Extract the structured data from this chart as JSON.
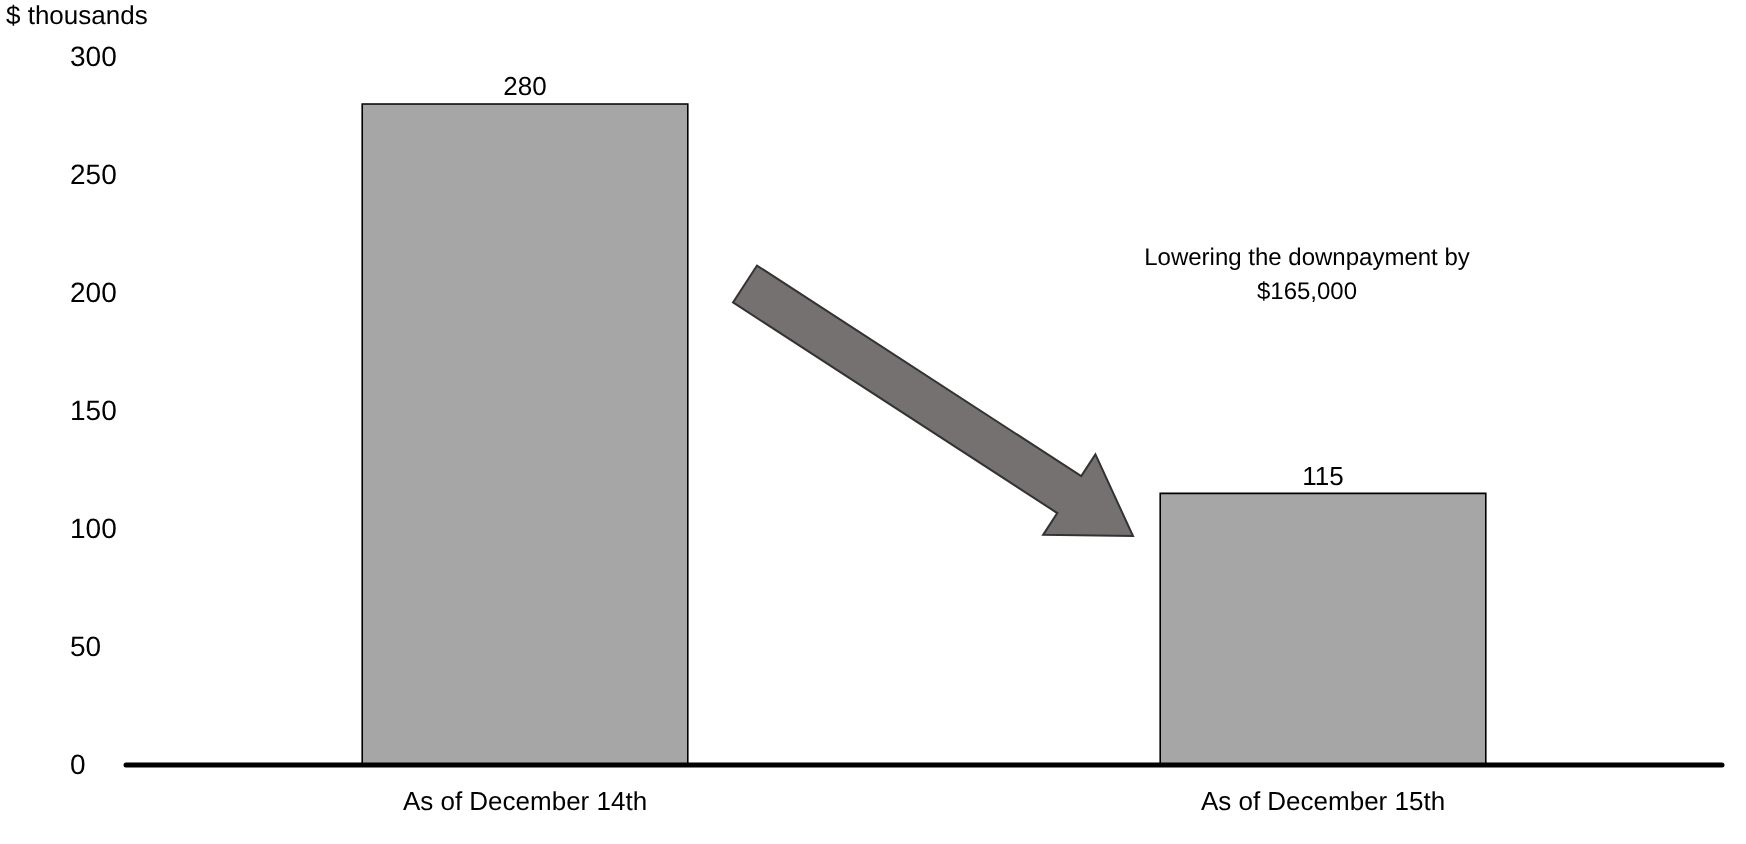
{
  "chart_data": {
    "type": "bar",
    "ylabel": "$ thousands",
    "categories": [
      "As of December 14th",
      "As of December 15th"
    ],
    "values": [
      280,
      115
    ],
    "color": "#a6a6a6",
    "ylim": [
      0,
      300
    ],
    "yticks": [
      0,
      50,
      100,
      150,
      200,
      250,
      300
    ],
    "data_labels": true,
    "grid": false,
    "annotations": [
      "Lowering the downpayment by\n$165,000"
    ]
  }
}
